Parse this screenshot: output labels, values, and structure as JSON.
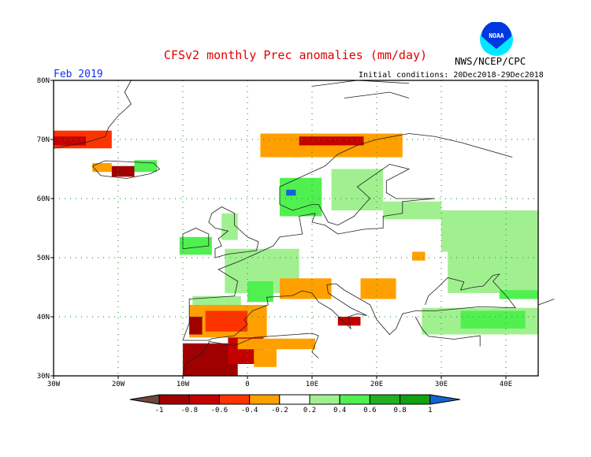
{
  "title": "CFSv2 monthly Prec anomalies (mm/day)",
  "agency": "NWS/NCEP/CPC",
  "logo_text": "NOAA",
  "period": "Feb 2019",
  "initial_conditions": "Initial conditions: 20Dec2018-29Dec2018",
  "map": {
    "lon_range": [
      -30,
      45
    ],
    "lat_range": [
      30,
      80
    ],
    "lon_ticks": [
      {
        "value": -30,
        "label": "30W"
      },
      {
        "value": -20,
        "label": "20W"
      },
      {
        "value": -10,
        "label": "10W"
      },
      {
        "value": 0,
        "label": "0"
      },
      {
        "value": 10,
        "label": "10E"
      },
      {
        "value": 20,
        "label": "20E"
      },
      {
        "value": 30,
        "label": "30E"
      },
      {
        "value": 40,
        "label": "40E"
      }
    ],
    "lat_ticks": [
      {
        "value": 30,
        "label": "30N"
      },
      {
        "value": 40,
        "label": "40N"
      },
      {
        "value": 50,
        "label": "50N"
      },
      {
        "value": 60,
        "label": "60N"
      },
      {
        "value": 70,
        "label": "70N"
      },
      {
        "value": 80,
        "label": "80N"
      }
    ],
    "anomaly_regions": [
      {
        "name": "greenland-east",
        "lon": [
          -30,
          -21
        ],
        "lat": [
          68.5,
          71.5
        ],
        "value": -0.5
      },
      {
        "name": "greenland-east-core",
        "lon": [
          -30,
          -25
        ],
        "lat": [
          69,
          70.5
        ],
        "value": -0.7
      },
      {
        "name": "iceland-west",
        "lon": [
          -24,
          -21
        ],
        "lat": [
          64.5,
          66
        ],
        "value": -0.3
      },
      {
        "name": "iceland-south",
        "lon": [
          -21,
          -17.5
        ],
        "lat": [
          63.7,
          65.5
        ],
        "value": -0.9
      },
      {
        "name": "iceland-east",
        "lon": [
          -17.5,
          -14
        ],
        "lat": [
          64.5,
          66.5
        ],
        "value": 0.5
      },
      {
        "name": "norway-north",
        "lon": [
          2,
          24
        ],
        "lat": [
          67,
          71
        ],
        "value": -0.3
      },
      {
        "name": "norway-north-core",
        "lon": [
          8,
          18
        ],
        "lat": [
          69,
          70.5
        ],
        "value": -0.7
      },
      {
        "name": "norway-west",
        "lon": [
          5,
          11.5
        ],
        "lat": [
          57,
          63.5
        ],
        "value": 0.5
      },
      {
        "name": "norway-west-max",
        "lon": [
          6,
          7.5
        ],
        "lat": [
          60.5,
          61.5
        ],
        "value": 1.2
      },
      {
        "name": "sweden-finland",
        "lon": [
          13,
          21
        ],
        "lat": [
          58,
          65
        ],
        "value": 0.3
      },
      {
        "name": "baltic-russia",
        "lon": [
          21,
          30
        ],
        "lat": [
          56.5,
          59.5
        ],
        "value": 0.3
      },
      {
        "name": "russia",
        "lon": [
          30,
          45
        ],
        "lat": [
          51,
          58
        ],
        "value": 0.3
      },
      {
        "name": "russia-south",
        "lon": [
          31,
          45
        ],
        "lat": [
          44,
          51
        ],
        "value": 0.4
      },
      {
        "name": "caspian",
        "lon": [
          39,
          45
        ],
        "lat": [
          43,
          44.5
        ],
        "value": 0.6
      },
      {
        "name": "ireland",
        "lon": [
          -10.5,
          -5.5
        ],
        "lat": [
          50.5,
          53.5
        ],
        "value": 0.5
      },
      {
        "name": "scotland",
        "lon": [
          -4,
          -1.5
        ],
        "lat": [
          53,
          57.5
        ],
        "value": 0.3
      },
      {
        "name": "france",
        "lon": [
          -3.5,
          8
        ],
        "lat": [
          44,
          51.5
        ],
        "value": 0.3
      },
      {
        "name": "france-south",
        "lon": [
          0,
          4
        ],
        "lat": [
          42.5,
          46
        ],
        "value": 0.6
      },
      {
        "name": "north-spain",
        "lon": [
          -8.5,
          -1
        ],
        "lat": [
          42,
          43.5
        ],
        "value": 0.3
      },
      {
        "name": "iberia",
        "lon": [
          -9,
          3
        ],
        "lat": [
          36.5,
          42
        ],
        "value": -0.3
      },
      {
        "name": "iberia-core",
        "lon": [
          -6.5,
          0
        ],
        "lat": [
          37.5,
          41
        ],
        "value": -0.5
      },
      {
        "name": "portugal",
        "lon": [
          -9,
          -7
        ],
        "lat": [
          37,
          40
        ],
        "value": -0.9
      },
      {
        "name": "north-africa-west",
        "lon": [
          -10,
          -1.5
        ],
        "lat": [
          30,
          35.5
        ],
        "value": -0.9
      },
      {
        "name": "north-africa-mid",
        "lon": [
          -3,
          2.5
        ],
        "lat": [
          32,
          36.5
        ],
        "value": -0.7
      },
      {
        "name": "north-africa-east",
        "lon": [
          -1.5,
          10.5
        ],
        "lat": [
          34.5,
          36.3
        ],
        "value": -0.3
      },
      {
        "name": "algeria-south",
        "lon": [
          1,
          4.5
        ],
        "lat": [
          31.5,
          34.5
        ],
        "value": -0.3
      },
      {
        "name": "italy-north",
        "lon": [
          5,
          13
        ],
        "lat": [
          43,
          46.5
        ],
        "value": -0.3
      },
      {
        "name": "italy-south",
        "lon": [
          14,
          17.5
        ],
        "lat": [
          38.5,
          40
        ],
        "value": -0.7
      },
      {
        "name": "balkans",
        "lon": [
          17.5,
          23
        ],
        "lat": [
          43,
          46.5
        ],
        "value": -0.3
      },
      {
        "name": "poland",
        "lon": [
          25.5,
          27.5
        ],
        "lat": [
          49.5,
          51
        ],
        "value": -0.3
      },
      {
        "name": "turkey",
        "lon": [
          27,
          45
        ],
        "lat": [
          37,
          41.5
        ],
        "value": 0.3
      },
      {
        "name": "turkey-core",
        "lon": [
          33,
          43
        ],
        "lat": [
          38,
          41
        ],
        "value": 0.6
      }
    ]
  },
  "colorbar": {
    "labels": [
      "-1",
      "-0.8",
      "-0.6",
      "-0.4",
      "-0.2",
      "0.2",
      "0.4",
      "0.6",
      "0.8",
      "1"
    ],
    "bins": [
      {
        "max": -1,
        "color": "#6b4a3a"
      },
      {
        "max": -0.8,
        "color": "#a00000"
      },
      {
        "max": -0.6,
        "color": "#c40000"
      },
      {
        "max": -0.4,
        "color": "#ff3200"
      },
      {
        "max": -0.2,
        "color": "#ffa000"
      },
      {
        "max": 0.2,
        "color": "#ffffff"
      },
      {
        "max": 0.4,
        "color": "#a0f090"
      },
      {
        "max": 0.6,
        "color": "#50f050"
      },
      {
        "max": 0.8,
        "color": "#20b020"
      },
      {
        "max": 1,
        "color": "#10a010"
      },
      {
        "max": 99,
        "color": "#1464d2"
      }
    ]
  },
  "colors": {
    "title": "#e00000",
    "period": "#1030ff",
    "grid": "#30a030",
    "coast": "#202020",
    "border": "#404040"
  }
}
